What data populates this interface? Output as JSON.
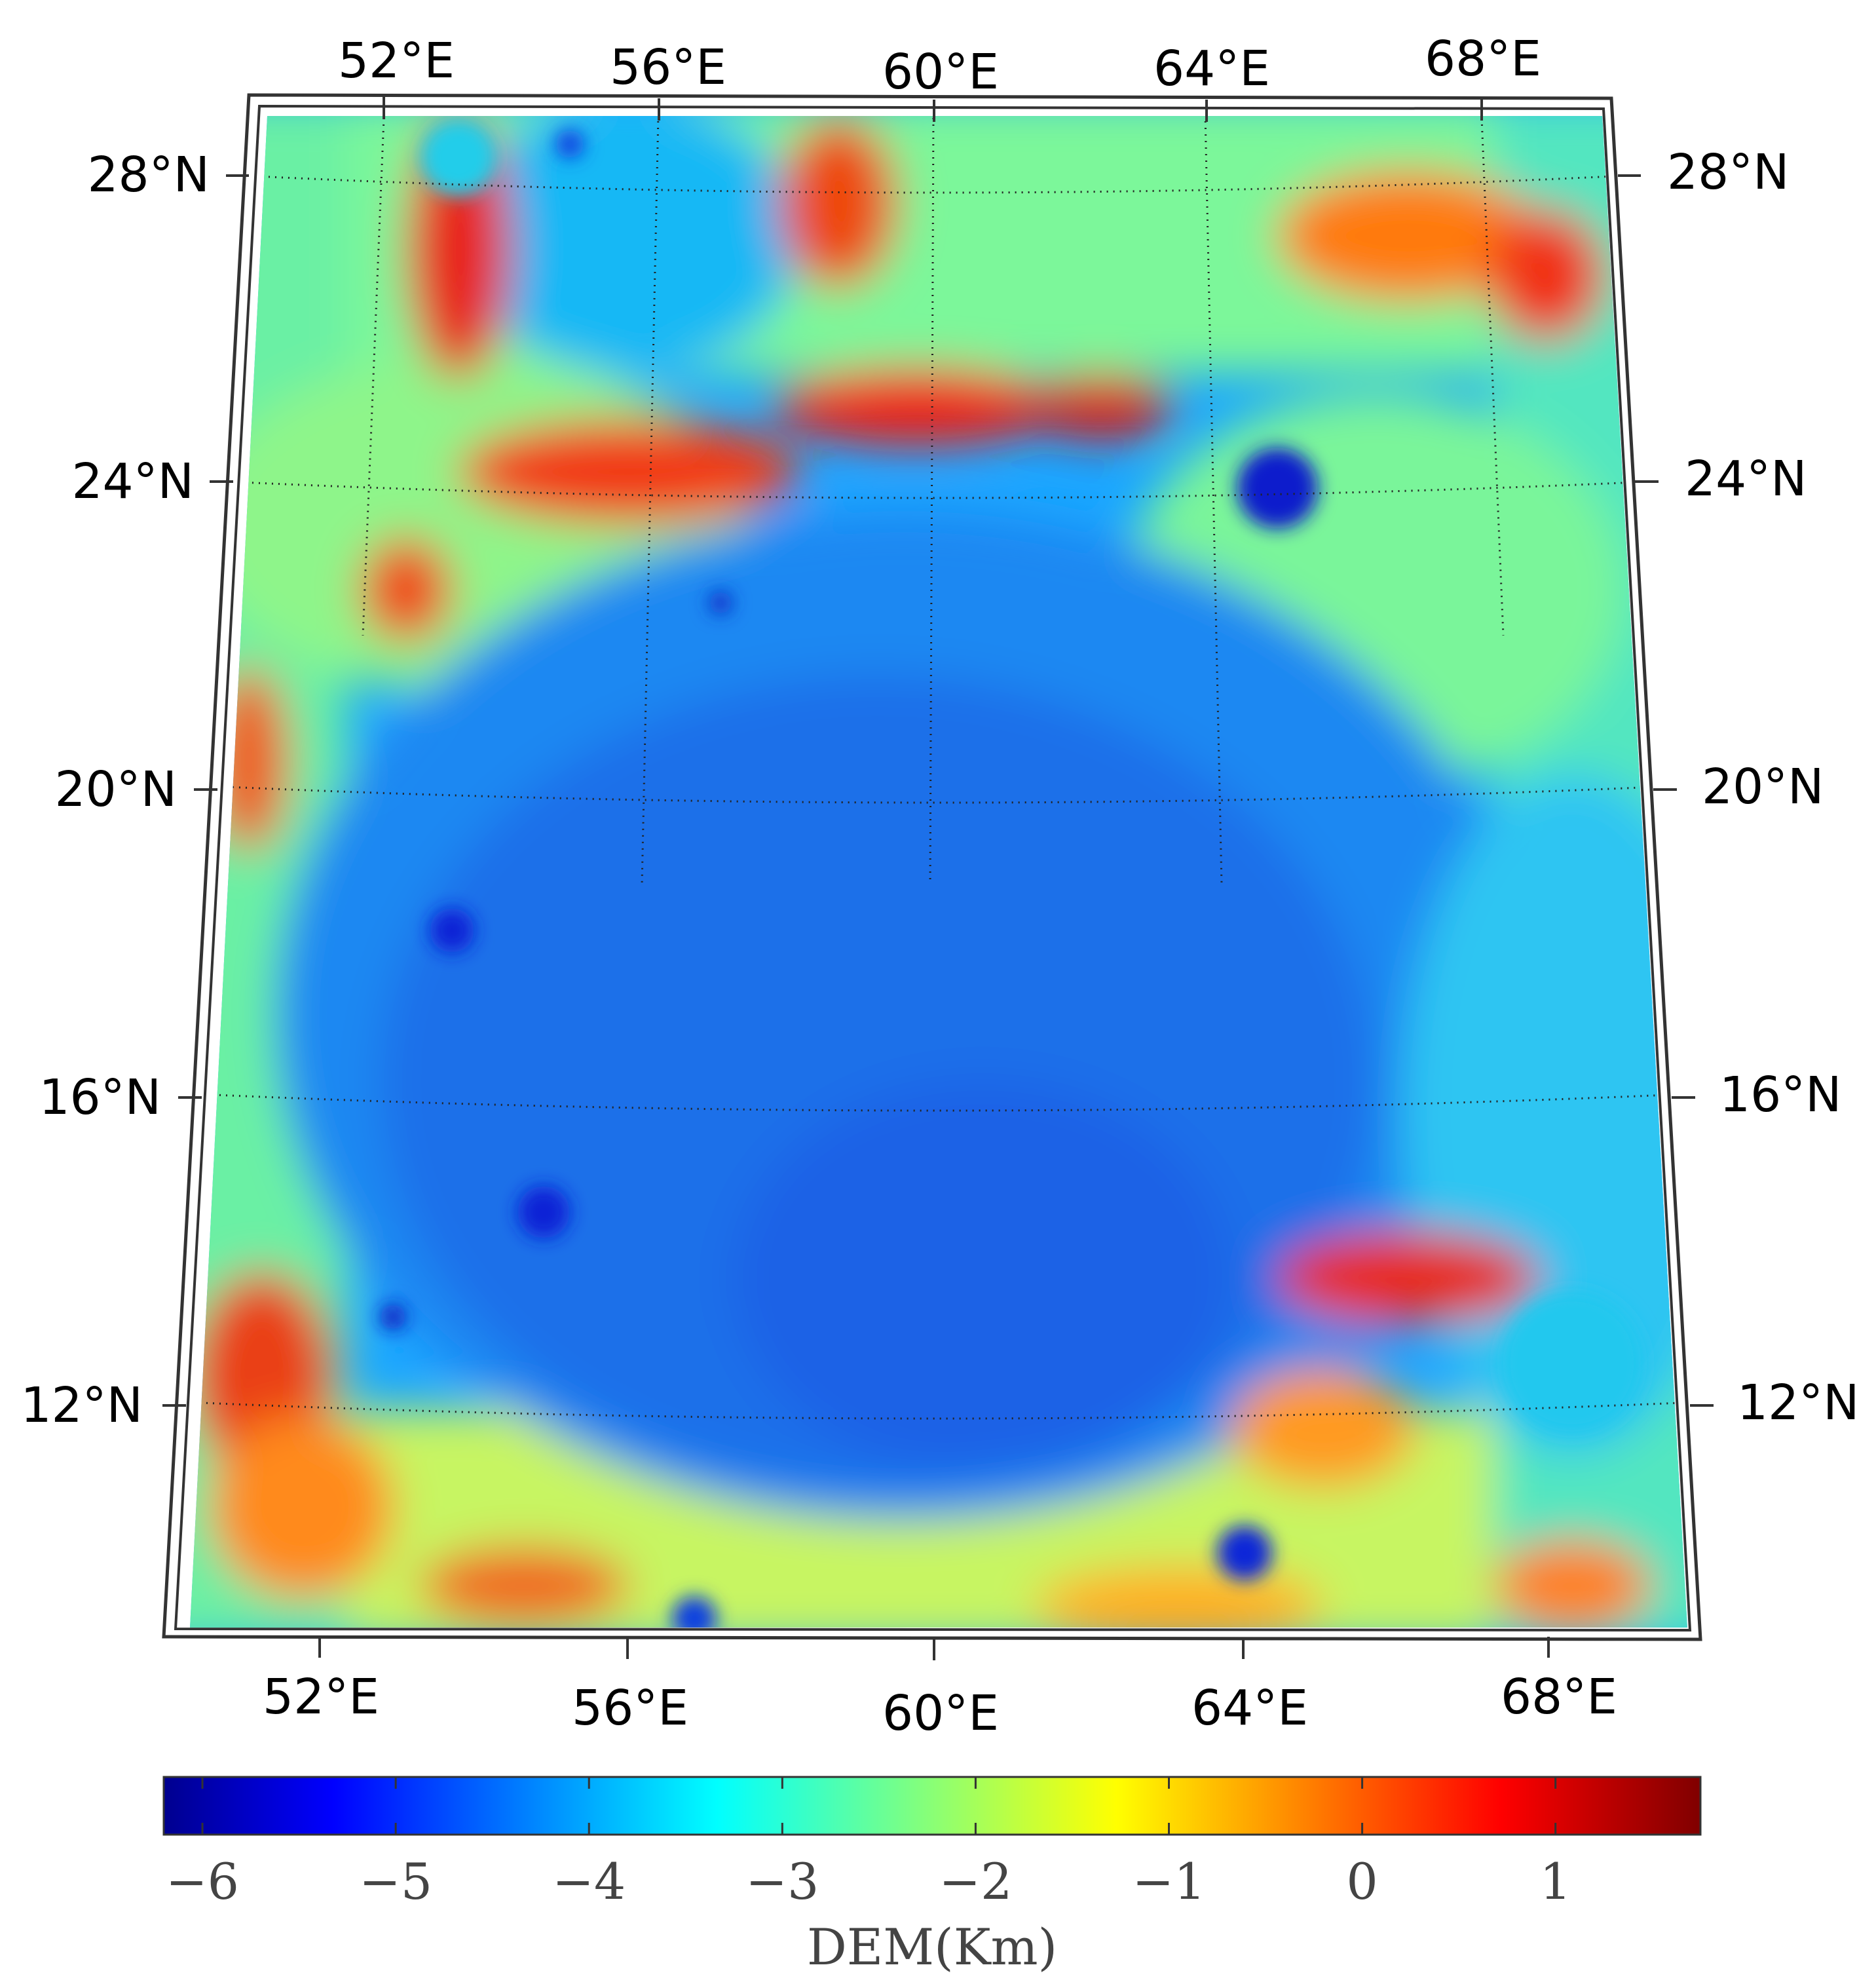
{
  "map": {
    "top_lon_labels": [
      "52°E",
      "56°E",
      "60°E",
      "64°E",
      "68°E"
    ],
    "bottom_lon_labels": [
      "52°E",
      "56°E",
      "60°E",
      "64°E",
      "68°E"
    ],
    "left_lat_labels": [
      "28°N",
      "24°N",
      "20°N",
      "16°N",
      "12°N"
    ],
    "right_lat_labels": [
      "28°N",
      "24°N",
      "20°N",
      "16°N",
      "12°N"
    ],
    "colormap": "jet",
    "gridlines": "dotted"
  },
  "colorbar": {
    "title": "DEM(Km)",
    "ticks": [
      "−6",
      "−5",
      "−4",
      "−3",
      "−2",
      "−1",
      "0",
      "1"
    ],
    "tick_values": [
      -6,
      -5,
      -4,
      -3,
      -2,
      -1,
      0,
      1
    ],
    "range": [
      -6.2,
      1.75
    ]
  }
}
